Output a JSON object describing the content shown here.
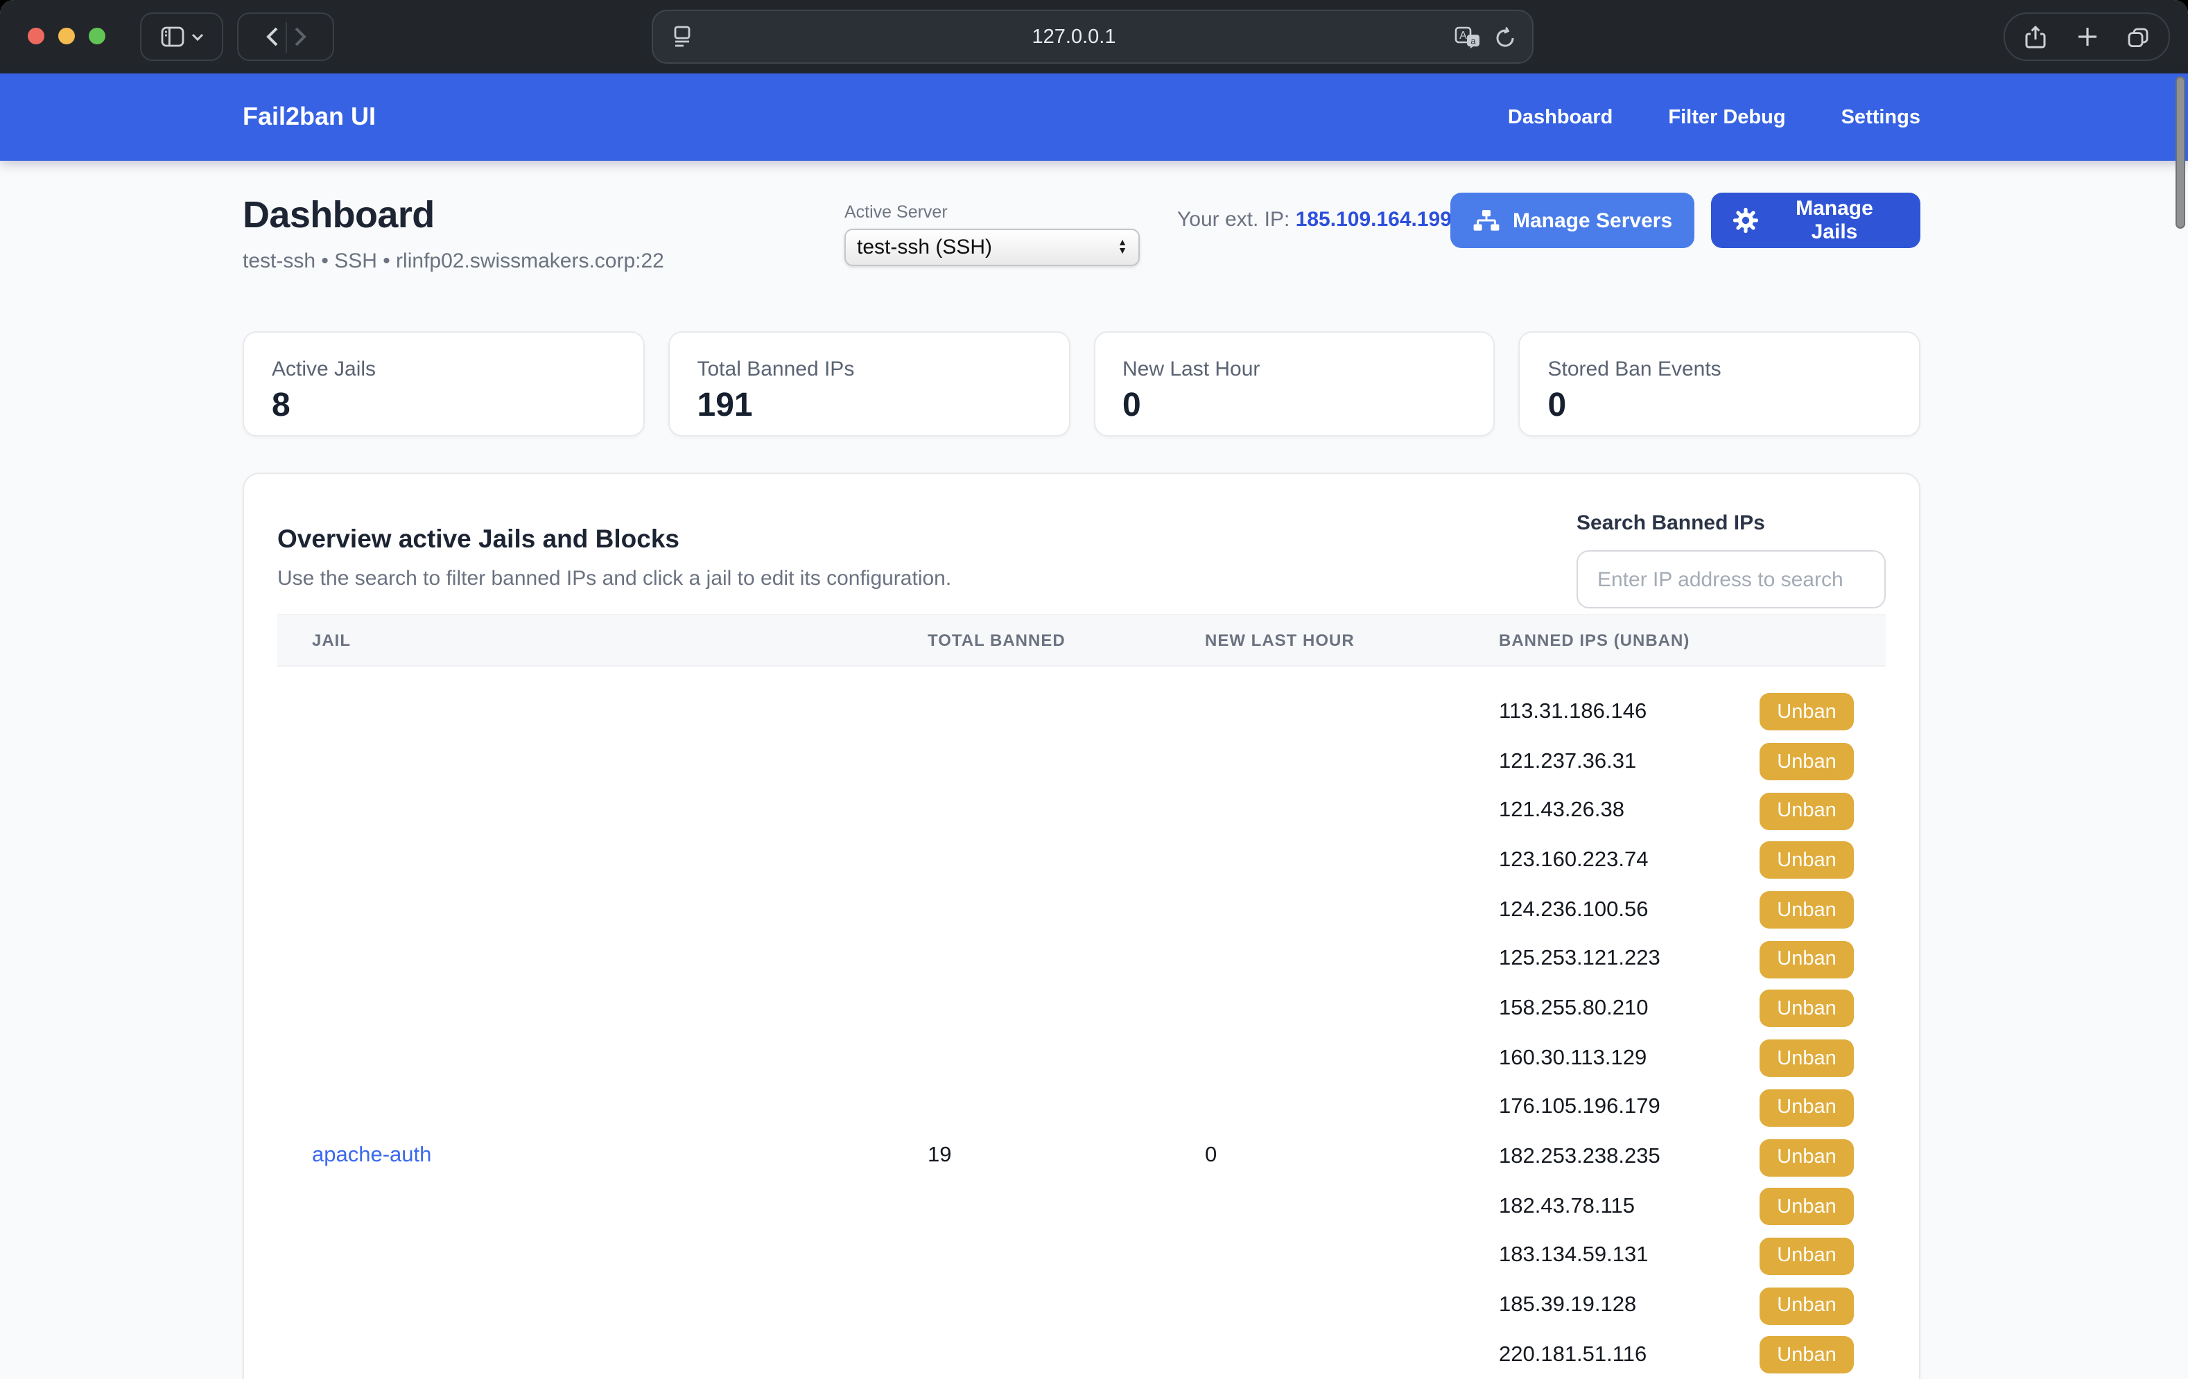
{
  "browser": {
    "url": "127.0.0.1"
  },
  "navbar": {
    "brand": "Fail2ban UI",
    "links": [
      {
        "label": "Dashboard"
      },
      {
        "label": "Filter Debug"
      },
      {
        "label": "Settings"
      }
    ]
  },
  "header": {
    "title": "Dashboard",
    "subtitle": "test-ssh • SSH • rlinfp02.swissmakers.corp:22",
    "active_server": {
      "label": "Active Server",
      "value": "test-ssh (SSH)"
    },
    "ext_ip": {
      "label": "Your ext. IP:",
      "value": "185.109.164.199"
    },
    "buttons": {
      "manage_servers": "Manage Servers",
      "manage_jails": "Manage Jails"
    }
  },
  "stats": [
    {
      "label": "Active Jails",
      "value": "8"
    },
    {
      "label": "Total Banned IPs",
      "value": "191"
    },
    {
      "label": "New Last Hour",
      "value": "0"
    },
    {
      "label": "Stored Ban Events",
      "value": "0"
    }
  ],
  "overview": {
    "title": "Overview active Jails and Blocks",
    "description": "Use the search to filter banned IPs and click a jail to edit its configuration.",
    "search_label": "Search Banned IPs",
    "search_placeholder": "Enter IP address to search"
  },
  "table": {
    "columns": [
      "JAIL",
      "TOTAL BANNED",
      "NEW LAST HOUR",
      "BANNED IPS (UNBAN)"
    ],
    "unban_label": "Unban",
    "jails": [
      {
        "name": "apache-auth",
        "total_banned": "19",
        "new_last_hour": "0",
        "banned_ips": [
          "113.31.186.146",
          "121.237.36.31",
          "121.43.26.38",
          "123.160.223.74",
          "124.236.100.56",
          "125.253.121.223",
          "158.255.80.210",
          "160.30.113.129",
          "176.105.196.179",
          "182.253.238.235",
          "182.43.78.115",
          "183.134.59.131",
          "185.39.19.128",
          "220.181.51.116"
        ]
      }
    ]
  },
  "colors": {
    "navbar": "#3662e3",
    "titlebar": "#22262a",
    "accent": "#2f55d6",
    "accent_light": "#4a7dea",
    "unban": "#e0ac3b",
    "link_blue": "#3b69ee",
    "ip_blue": "#2c4fdc"
  }
}
